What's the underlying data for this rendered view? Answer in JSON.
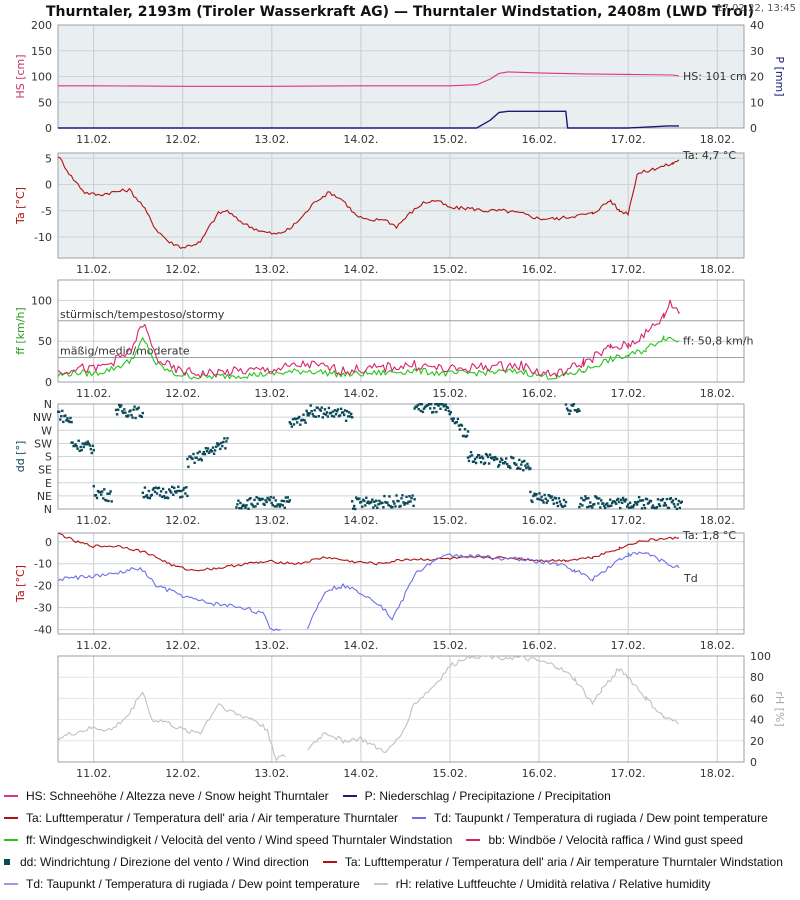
{
  "header": {
    "title": "Thurntaler, 2193m (Tiroler Wasserkraft AG) — Thurntaler Windstation, 2408m (LWD Tirol)",
    "timestamp": "17.02.22, 13:45"
  },
  "colors": {
    "snow": "#e0318a",
    "precip": "#1a1a7a",
    "temp": "#b31212",
    "wind": "#29c41a",
    "gust": "#d6246e",
    "dir": "#0c4a5a",
    "dew": "#6f6fe6",
    "rh": "#c0c0c8",
    "panel_bg": "#e9eef0",
    "frame": "#9aa0a6"
  },
  "chart_data": [
    {
      "id": "snow_precip",
      "type": "line",
      "ylabel": "HS [cm]",
      "ylabel_right": "P [mm]",
      "ylim": [
        0,
        200
      ],
      "yticks": [
        0,
        50,
        100,
        150,
        200
      ],
      "ylim_right": [
        0,
        40
      ],
      "yticks_right": [
        0,
        10,
        20,
        30,
        40
      ],
      "x_ticks": [
        "11.02.",
        "12.02.",
        "13.02.",
        "14.02.",
        "15.02.",
        "16.02.",
        "17.02.",
        "18.02."
      ],
      "x_range": [
        10.6,
        18.3
      ],
      "series": [
        {
          "name": "HS",
          "axis": "left",
          "x": [
            10.6,
            11.0,
            12.0,
            13.0,
            14.0,
            15.0,
            15.3,
            15.45,
            15.55,
            15.65,
            16.0,
            16.5,
            17.0,
            17.5,
            17.57
          ],
          "y": [
            82,
            82,
            81,
            81,
            82,
            82,
            84,
            95,
            106,
            109,
            107,
            105,
            104,
            103,
            101
          ]
        },
        {
          "name": "P",
          "axis": "right",
          "x": [
            10.6,
            15.3,
            15.45,
            15.55,
            15.65,
            16.3,
            16.32,
            17.0,
            17.45,
            17.57
          ],
          "y": [
            0,
            0,
            3,
            6,
            6.5,
            6.5,
            0,
            0,
            0.8,
            0.8
          ]
        }
      ],
      "end_label": "HS: 101 cm"
    },
    {
      "id": "air_temp",
      "type": "line",
      "ylabel": "Ta [°C]",
      "ylim": [
        -14,
        6
      ],
      "yticks": [
        -10,
        -5,
        0,
        5
      ],
      "x_ticks": [
        "11.02.",
        "12.02.",
        "13.02.",
        "14.02.",
        "15.02.",
        "16.02.",
        "17.02.",
        "18.02."
      ],
      "x_range": [
        10.6,
        18.3
      ],
      "series": [
        {
          "name": "Ta",
          "x": [
            10.6,
            10.75,
            10.9,
            11.05,
            11.2,
            11.4,
            11.55,
            11.7,
            11.85,
            12.0,
            12.1,
            12.2,
            12.3,
            12.4,
            12.5,
            12.6,
            12.75,
            12.9,
            13.05,
            13.2,
            13.35,
            13.5,
            13.65,
            13.8,
            13.95,
            14.1,
            14.25,
            14.4,
            14.55,
            14.7,
            14.85,
            15.0,
            15.2,
            15.4,
            15.6,
            15.8,
            16.0,
            16.2,
            16.4,
            16.6,
            16.8,
            16.9,
            17.0,
            17.1,
            17.3,
            17.5,
            17.57
          ],
          "y": [
            5.5,
            1.5,
            -1.5,
            -2.0,
            -1.5,
            -1.0,
            -4.0,
            -8.5,
            -11.0,
            -12.0,
            -11.5,
            -11.0,
            -8.0,
            -5.5,
            -5.0,
            -6.5,
            -8.0,
            -9.0,
            -9.5,
            -8.5,
            -6.0,
            -3.0,
            -1.5,
            -3.0,
            -6.0,
            -7.0,
            -6.5,
            -8.0,
            -5.5,
            -3.5,
            -3.0,
            -4.5,
            -4.5,
            -5.0,
            -5.0,
            -5.5,
            -6.5,
            -6.5,
            -6.0,
            -5.5,
            -3.0,
            -5.0,
            -5.5,
            2.0,
            3.0,
            4.0,
            4.7
          ]
        }
      ],
      "end_label": "Ta: 4,7 °C"
    },
    {
      "id": "wind_speed",
      "type": "line",
      "ylabel": "ff [km/h]",
      "ylim": [
        0,
        125
      ],
      "yticks": [
        0,
        50,
        100
      ],
      "x_ticks": [
        "11.02.",
        "12.02.",
        "13.02.",
        "14.02.",
        "15.02.",
        "16.02.",
        "17.02.",
        "18.02."
      ],
      "x_range": [
        10.6,
        18.3
      ],
      "thresholds": [
        {
          "value": 75,
          "label": "stürmisch/tempestoso/stormy"
        },
        {
          "value": 30,
          "label": "mäßig/medio/moderate"
        }
      ],
      "series": [
        {
          "name": "ff",
          "x": [
            10.6,
            10.8,
            11.0,
            11.2,
            11.4,
            11.5,
            11.55,
            11.6,
            11.7,
            11.9,
            12.2,
            12.6,
            13.0,
            13.4,
            13.8,
            14.2,
            14.6,
            15.0,
            15.4,
            15.8,
            16.0,
            16.2,
            16.5,
            16.8,
            17.0,
            17.2,
            17.4,
            17.57
          ],
          "y": [
            8,
            12,
            10,
            16,
            25,
            40,
            52,
            44,
            22,
            10,
            6,
            8,
            10,
            14,
            9,
            11,
            14,
            10,
            12,
            13,
            8,
            6,
            14,
            28,
            32,
            40,
            55,
            50.8
          ]
        },
        {
          "name": "bb",
          "x": [
            10.6,
            10.8,
            11.0,
            11.2,
            11.4,
            11.5,
            11.55,
            11.6,
            11.7,
            11.9,
            12.2,
            12.6,
            13.0,
            13.4,
            13.8,
            14.2,
            14.6,
            15.0,
            15.4,
            15.8,
            16.0,
            16.2,
            16.5,
            16.8,
            17.0,
            17.2,
            17.4,
            17.47,
            17.57
          ],
          "y": [
            12,
            18,
            15,
            24,
            36,
            58,
            72,
            60,
            30,
            15,
            10,
            13,
            15,
            22,
            14,
            17,
            21,
            15,
            19,
            20,
            12,
            9,
            24,
            42,
            45,
            60,
            80,
            98,
            86
          ]
        }
      ],
      "end_label": "ff: 50,8 km/h"
    },
    {
      "id": "wind_direction",
      "type": "scatter",
      "ylabel": "dd [°]",
      "categories": [
        "N",
        "NE",
        "E",
        "SE",
        "S",
        "SW",
        "W",
        "NW",
        "N"
      ],
      "ylim": [
        0,
        360
      ],
      "x_ticks": [
        "11.02.",
        "12.02.",
        "13.02.",
        "14.02.",
        "15.02.",
        "16.02.",
        "17.02.",
        "18.02."
      ],
      "x_range": [
        10.6,
        18.3
      ],
      "series": [
        {
          "name": "dd",
          "segments": [
            {
              "x0": 10.6,
              "x1": 10.75,
              "d0": 330,
              "d1": 300
            },
            {
              "x0": 10.75,
              "x1": 11.0,
              "d0": 225,
              "d1": 210
            },
            {
              "x0": 11.0,
              "x1": 11.2,
              "d0": 60,
              "d1": 45
            },
            {
              "x0": 11.25,
              "x1": 11.55,
              "d0": 340,
              "d1": 330
            },
            {
              "x0": 11.55,
              "x1": 12.05,
              "d0": 55,
              "d1": 60
            },
            {
              "x0": 12.05,
              "x1": 12.5,
              "d0": 160,
              "d1": 230
            },
            {
              "x0": 12.6,
              "x1": 13.2,
              "d0": 20,
              "d1": 25
            },
            {
              "x0": 13.2,
              "x1": 13.4,
              "d0": 290,
              "d1": 320
            },
            {
              "x0": 13.4,
              "x1": 13.9,
              "d0": 340,
              "d1": 320
            },
            {
              "x0": 13.9,
              "x1": 14.6,
              "d0": 20,
              "d1": 30
            },
            {
              "x0": 14.6,
              "x1": 14.95,
              "d0": 350,
              "d1": 345
            },
            {
              "x0": 14.95,
              "x1": 15.2,
              "d0": 340,
              "d1": 250
            },
            {
              "x0": 15.2,
              "x1": 15.9,
              "d0": 180,
              "d1": 150
            },
            {
              "x0": 15.9,
              "x1": 16.3,
              "d0": 40,
              "d1": 20
            },
            {
              "x0": 16.3,
              "x1": 16.45,
              "d0": 345,
              "d1": 350
            },
            {
              "x0": 16.45,
              "x1": 17.6,
              "d0": 25,
              "d1": 20
            }
          ]
        }
      ]
    },
    {
      "id": "temp_dew",
      "type": "line",
      "ylabel": "Ta [°C]",
      "ylim": [
        -42,
        4
      ],
      "yticks": [
        -40,
        -30,
        -20,
        -10,
        0
      ],
      "x_ticks": [
        "11.02.",
        "12.02.",
        "13.02.",
        "14.02.",
        "15.02.",
        "16.02.",
        "17.02.",
        "18.02."
      ],
      "x_range": [
        10.6,
        18.3
      ],
      "series": [
        {
          "name": "Ta",
          "x": [
            10.6,
            10.8,
            11.0,
            11.3,
            11.6,
            11.9,
            12.1,
            12.4,
            12.7,
            13.0,
            13.3,
            13.6,
            13.9,
            14.2,
            14.5,
            14.8,
            15.1,
            15.4,
            15.7,
            16.0,
            16.3,
            16.6,
            16.9,
            17.1,
            17.3,
            17.57
          ],
          "y": [
            4.0,
            0,
            -2,
            -2,
            -5,
            -11,
            -13,
            -12,
            -10,
            -9,
            -10,
            -7,
            -9,
            -10,
            -8,
            -8,
            -7.5,
            -7,
            -7.5,
            -8.5,
            -8.5,
            -7,
            -3,
            0,
            1,
            1.8
          ]
        },
        {
          "name": "Td",
          "x": [
            10.6,
            10.9,
            11.2,
            11.5,
            11.6,
            11.7,
            11.9,
            12.1,
            12.3,
            12.5,
            12.7,
            12.9,
            13.0,
            13.1
          ],
          "y": [
            -17,
            -16,
            -15,
            -12,
            -15,
            -20,
            -23,
            -26,
            -28,
            -29,
            -30,
            -33,
            -40,
            -40
          ]
        },
        {
          "name": "Td",
          "x": [
            13.4,
            13.6,
            13.8,
            14.0,
            14.2,
            14.35,
            14.45,
            14.6,
            14.8,
            15.0,
            15.4,
            15.8,
            16.2,
            16.4,
            16.6,
            16.9,
            17.0,
            17.2,
            17.4,
            17.57
          ],
          "y": [
            -39,
            -22,
            -20,
            -23,
            -28,
            -35,
            -28,
            -15,
            -9,
            -6,
            -7,
            -8,
            -10,
            -13,
            -17,
            -8,
            -6,
            -5,
            -9,
            -12
          ]
        }
      ],
      "end_label": "Ta: 1,8 °C",
      "end_label_2": "Td"
    },
    {
      "id": "rel_humidity",
      "type": "line",
      "ylabel_right": "rH [%]",
      "ylim_right": [
        0,
        100
      ],
      "yticks_right": [
        0,
        20,
        40,
        60,
        80,
        100
      ],
      "x_ticks": [
        "11.02.",
        "12.02.",
        "13.02.",
        "14.02.",
        "15.02.",
        "16.02.",
        "17.02.",
        "18.02."
      ],
      "x_range": [
        10.6,
        18.3
      ],
      "series": [
        {
          "name": "rH",
          "x": [
            10.6,
            10.8,
            11.0,
            11.2,
            11.4,
            11.55,
            11.65,
            11.8,
            12.0,
            12.2,
            12.4,
            12.6,
            12.8,
            12.95,
            13.05,
            13.15
          ],
          "y": [
            22,
            28,
            32,
            30,
            45,
            68,
            40,
            38,
            30,
            28,
            55,
            45,
            40,
            30,
            3,
            5
          ]
        },
        {
          "name": "rH",
          "x": [
            13.4,
            13.6,
            13.8,
            14.0,
            14.2,
            14.3,
            14.45,
            14.6,
            14.8,
            15.0,
            15.2,
            15.4,
            15.6,
            15.8,
            16.0,
            16.2,
            16.4,
            16.6,
            16.7,
            16.9,
            17.0,
            17.2,
            17.4,
            17.57
          ],
          "y": [
            12,
            28,
            20,
            22,
            12,
            10,
            25,
            55,
            70,
            90,
            100,
            100,
            99,
            98,
            95,
            90,
            78,
            55,
            68,
            88,
            80,
            60,
            42,
            36
          ]
        }
      ]
    }
  ],
  "legend": {
    "rows": [
      [
        {
          "kind": "line",
          "color": "#e0318a",
          "label": "HS: Schneehöhe / Altezza neve / Snow height  Thurntaler"
        },
        {
          "kind": "line",
          "color": "#1a1a7a",
          "label": "P: Niederschlag / Precipitazione / Precipitation"
        }
      ],
      [
        {
          "kind": "line",
          "color": "#b31212",
          "label": "Ta: Lufttemperatur / Temperatura dell' aria / Air temperature  Thurntaler"
        },
        {
          "kind": "line",
          "color": "#6f6fe6",
          "label": "Td: Taupunkt / Temperatura di rugiada / Dew point temperature"
        }
      ],
      [
        {
          "kind": "line",
          "color": "#29c41a",
          "label": "ff: Windgeschwindigkeit / Velocità del vento / Wind speed  Thurntaler Windstation"
        },
        {
          "kind": "line",
          "color": "#d6246e",
          "label": "bb: Windböe / Velocità raffica / Wind gust speed"
        }
      ],
      [
        {
          "kind": "square",
          "color": "#0c4a5a",
          "label": "dd: Windrichtung / Direzione del vento / Wind direction"
        },
        {
          "kind": "line",
          "color": "#b31212",
          "label": "Ta: Lufttemperatur / Temperatura dell' aria / Air temperature  Thurntaler Windstation"
        }
      ],
      [
        {
          "kind": "line",
          "color": "#9a9ade",
          "label": "Td: Taupunkt / Temperatura di rugiada / Dew point temperature"
        },
        {
          "kind": "line",
          "color": "#c8c8cc",
          "label": "rH: relative Luftfeuchte / Umidità relativa / Relative humidity"
        }
      ]
    ]
  }
}
